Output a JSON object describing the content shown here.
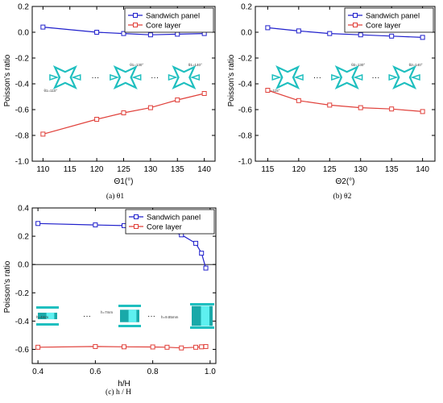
{
  "chart_data": [
    {
      "type": "line",
      "panel": "a",
      "caption": "(a) θ1",
      "xlabel": "Θ1(°)",
      "ylabel": "Poisson's ratio",
      "xlim": [
        108,
        142
      ],
      "ylim": [
        -1.0,
        0.2
      ],
      "xticks": [
        110,
        115,
        120,
        125,
        130,
        135,
        140
      ],
      "yticks": [
        0.2,
        0.0,
        -0.2,
        -0.4,
        -0.6,
        -0.8,
        -1.0
      ],
      "ytick_labels": [
        "0.2",
        "0.0",
        "-0.2",
        "-0.4",
        "-0.6",
        "-0.8",
        "-1.0"
      ],
      "legend_position": "top-right",
      "series": [
        {
          "name": "Sandwich panel",
          "color": "#2020cc",
          "marker": "square",
          "x": [
            110,
            120,
            125,
            130,
            135,
            140
          ],
          "y": [
            0.04,
            0.0,
            -0.01,
            -0.02,
            -0.015,
            -0.01
          ]
        },
        {
          "name": "Core layer",
          "color": "#e0403a",
          "marker": "square",
          "x": [
            110,
            120,
            125,
            130,
            135,
            140
          ],
          "y": [
            -0.79,
            -0.675,
            -0.625,
            -0.585,
            -0.525,
            -0.475
          ]
        }
      ],
      "annotations": [
        "θ1=110°",
        "θ1=130°",
        "θ1=140°",
        "···"
      ]
    },
    {
      "type": "line",
      "panel": "b",
      "caption": "(b) θ2",
      "xlabel": "Θ2(°)",
      "ylabel": "Poisson's ratio",
      "xlim": [
        113,
        142
      ],
      "ylim": [
        -1.0,
        0.2
      ],
      "xticks": [
        115,
        120,
        125,
        130,
        135,
        140
      ],
      "yticks": [
        0.2,
        0.0,
        -0.2,
        -0.4,
        -0.6,
        -0.8,
        -1.0
      ],
      "ytick_labels": [
        "0.2",
        "0.0",
        "-0.2",
        "-0.4",
        "-0.6",
        "-0.8",
        "-1.0"
      ],
      "legend_position": "top-right",
      "series": [
        {
          "name": "Sandwich panel",
          "color": "#2020cc",
          "marker": "square",
          "x": [
            115,
            120,
            125,
            130,
            135,
            140
          ],
          "y": [
            0.035,
            0.01,
            -0.01,
            -0.02,
            -0.03,
            -0.04
          ]
        },
        {
          "name": "Core layer",
          "color": "#e0403a",
          "marker": "square",
          "x": [
            115,
            120,
            125,
            130,
            135,
            140
          ],
          "y": [
            -0.45,
            -0.53,
            -0.565,
            -0.585,
            -0.595,
            -0.615
          ]
        }
      ],
      "annotations": [
        "θ2=115°",
        "θ2=130°",
        "θ2=140°",
        "···"
      ]
    },
    {
      "type": "line",
      "panel": "c",
      "caption": "(c) h / H",
      "xlabel": "h/H",
      "ylabel": "Poisson's ratio",
      "xlim": [
        0.38,
        1.02
      ],
      "ylim": [
        -0.7,
        0.4
      ],
      "xticks": [
        0.4,
        0.6,
        0.8,
        1.0
      ],
      "xtick_labels": [
        "0.4",
        "0.6",
        "0.8",
        "1.0"
      ],
      "yticks": [
        0.4,
        0.2,
        0.0,
        -0.2,
        -0.4,
        -0.6
      ],
      "ytick_labels": [
        "0.4",
        "0.2",
        "0.0",
        "-0.2",
        "-0.4",
        "-0.6"
      ],
      "legend_position": "top-right",
      "series": [
        {
          "name": "Sandwich panel",
          "color": "#2020cc",
          "marker": "square",
          "x": [
            0.4,
            0.6,
            0.7,
            0.8,
            0.85,
            0.9,
            0.95,
            0.97,
            0.985
          ],
          "y": [
            0.29,
            0.28,
            0.275,
            0.26,
            0.245,
            0.21,
            0.15,
            0.08,
            -0.025
          ]
        },
        {
          "name": "Core layer",
          "color": "#e0403a",
          "marker": "square",
          "x": [
            0.4,
            0.6,
            0.7,
            0.8,
            0.85,
            0.9,
            0.95,
            0.97,
            0.985
          ],
          "y": [
            -0.585,
            -0.58,
            -0.582,
            -0.583,
            -0.585,
            -0.59,
            -0.585,
            -0.582,
            -0.58
          ]
        }
      ],
      "annotations": [
        "h=4mm",
        "h=7mm",
        "h=9.85mm",
        "···"
      ]
    }
  ]
}
